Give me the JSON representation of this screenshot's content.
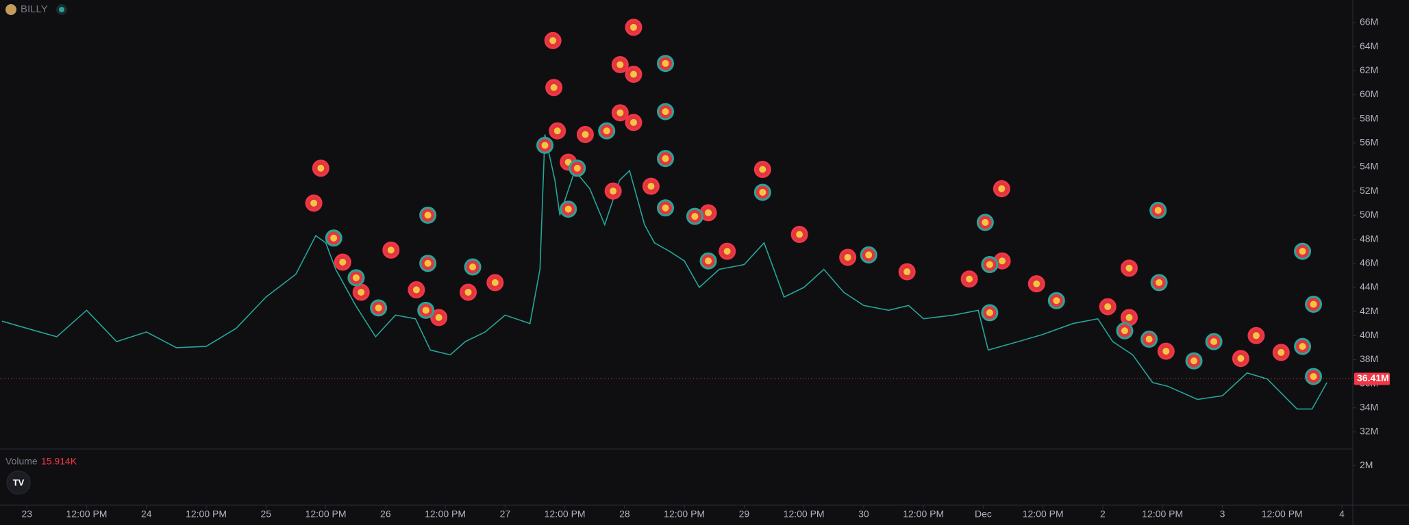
{
  "header": {
    "symbol": "BILLY"
  },
  "chart_data": {
    "type": "line",
    "x": [
      -5,
      0,
      6,
      12,
      18,
      24,
      30,
      36,
      42,
      48,
      54,
      58,
      60,
      62,
      66,
      70,
      74,
      78,
      81,
      85,
      88,
      92,
      96,
      101,
      103,
      104,
      106,
      107,
      110,
      113,
      116,
      119,
      121,
      124,
      126,
      129,
      132,
      135,
      139,
      144,
      148,
      152,
      156,
      160,
      164,
      168,
      173,
      177,
      180,
      186,
      191,
      193,
      199,
      204,
      210,
      215,
      218,
      222,
      226,
      229,
      235,
      240,
      245,
      249,
      255,
      258,
      261
    ],
    "values": [
      41.2,
      40.6,
      39.9,
      42.1,
      39.5,
      40.3,
      39.0,
      39.1,
      40.6,
      43.2,
      45.1,
      48.3,
      47.7,
      45.5,
      42.5,
      39.9,
      41.7,
      41.4,
      38.8,
      38.4,
      39.5,
      40.3,
      41.7,
      41.0,
      45.5,
      56.7,
      52.9,
      50.0,
      53.7,
      52.2,
      49.2,
      52.9,
      53.7,
      49.2,
      47.7,
      47.0,
      46.2,
      44.0,
      45.5,
      45.9,
      47.7,
      43.2,
      44.0,
      45.5,
      43.6,
      42.5,
      42.1,
      42.5,
      41.4,
      41.7,
      42.1,
      38.8,
      39.5,
      40.1,
      41.0,
      41.4,
      39.5,
      38.4,
      36.1,
      35.8,
      34.7,
      35.0,
      36.9,
      36.4,
      33.9,
      33.9,
      36.1
    ],
    "color": "#26a69a",
    "markers": [
      {
        "color": "#f23645",
        "x": [
          59.0,
          57.6,
          63.4,
          67.1,
          73.1,
          78.2,
          82.7,
          88.6,
          94.0,
          105.6,
          105.8,
          106.5,
          108.7,
          112.1,
          119.1,
          119.1,
          117.7,
          121.8,
          121.8,
          121.8,
          125.3,
          136.8,
          140.6,
          147.7,
          155.1,
          164.8,
          176.7,
          189.2,
          195.7,
          195.8,
          202.7,
          217.0,
          221.3,
          221.3,
          228.7,
          243.7,
          246.8,
          251.8
        ],
        "values": [
          53.9,
          51.0,
          46.1,
          43.6,
          47.1,
          43.8,
          41.5,
          43.6,
          44.4,
          64.5,
          60.6,
          57.0,
          54.4,
          56.7,
          62.5,
          58.5,
          52.0,
          65.6,
          61.7,
          57.7,
          52.4,
          50.2,
          47.0,
          53.8,
          48.4,
          46.5,
          45.3,
          44.7,
          52.2,
          46.2,
          44.3,
          42.4,
          45.6,
          41.5,
          38.7,
          38.1,
          40.0,
          38.6
        ]
      },
      {
        "color": "#26a69a",
        "x": [
          61.6,
          66.1,
          70.6,
          80.5,
          80.5,
          80.1,
          89.5,
          104.0,
          110.5,
          108.7,
          116.4,
          128.2,
          128.2,
          128.2,
          128.2,
          134.1,
          136.8,
          147.7,
          169.0,
          192.4,
          193.3,
          193.3,
          206.7,
          220.4,
          227.1,
          227.3,
          225.3,
          234.3,
          238.3,
          256.1,
          258.3,
          256.1,
          258.3
        ],
        "values": [
          48.1,
          44.8,
          42.3,
          50.0,
          46.0,
          42.1,
          45.7,
          55.8,
          53.9,
          50.5,
          57.0,
          62.6,
          58.6,
          54.7,
          50.6,
          49.9,
          46.2,
          51.9,
          46.7,
          49.4,
          45.9,
          41.9,
          42.9,
          40.4,
          50.4,
          44.4,
          39.7,
          37.9,
          39.5,
          47.0,
          42.6,
          39.1,
          36.6
        ]
      }
    ],
    "xlim": [
      -5.4,
      266.2
    ],
    "xticks": [
      {
        "value": 0,
        "label": "23"
      },
      {
        "value": 12,
        "label": "12:00 PM"
      },
      {
        "value": 24,
        "label": "24"
      },
      {
        "value": 36,
        "label": "12:00 PM"
      },
      {
        "value": 48,
        "label": "25"
      },
      {
        "value": 60,
        "label": "12:00 PM"
      },
      {
        "value": 72,
        "label": "26"
      },
      {
        "value": 84,
        "label": "12:00 PM"
      },
      {
        "value": 96,
        "label": "27"
      },
      {
        "value": 108,
        "label": "12:00 PM"
      },
      {
        "value": 120,
        "label": "28"
      },
      {
        "value": 132,
        "label": "12:00 PM"
      },
      {
        "value": 144,
        "label": "29"
      },
      {
        "value": 156,
        "label": "12:00 PM"
      },
      {
        "value": 168,
        "label": "30"
      },
      {
        "value": 180,
        "label": "12:00 PM"
      },
      {
        "value": 192,
        "label": "Dec"
      },
      {
        "value": 204,
        "label": "12:00 PM"
      },
      {
        "value": 216,
        "label": "2"
      },
      {
        "value": 228,
        "label": "12:00 PM"
      },
      {
        "value": 240,
        "label": "3"
      },
      {
        "value": 252,
        "label": "12:00 PM"
      },
      {
        "value": 264,
        "label": "4"
      }
    ],
    "ylim": [
      30.58,
      67.87
    ],
    "yticks": [
      {
        "value": 32,
        "label": "32M"
      },
      {
        "value": 34,
        "label": "34M"
      },
      {
        "value": 36,
        "label": "36M"
      },
      {
        "value": 38,
        "label": "38M"
      },
      {
        "value": 40,
        "label": "40M"
      },
      {
        "value": 42,
        "label": "42M"
      },
      {
        "value": 44,
        "label": "44M"
      },
      {
        "value": 46,
        "label": "46M"
      },
      {
        "value": 48,
        "label": "48M"
      },
      {
        "value": 50,
        "label": "50M"
      },
      {
        "value": 52,
        "label": "52M"
      },
      {
        "value": 54,
        "label": "54M"
      },
      {
        "value": 56,
        "label": "56M"
      },
      {
        "value": 58,
        "label": "58M"
      },
      {
        "value": 60,
        "label": "60M"
      },
      {
        "value": 62,
        "label": "62M"
      },
      {
        "value": 64,
        "label": "64M"
      },
      {
        "value": 66,
        "label": "66M"
      }
    ],
    "last_price": {
      "value": 36.41,
      "label": "36.41M",
      "color": "#f23645"
    },
    "volume": {
      "title": "Volume",
      "last": "15.914K",
      "ylim": [
        0,
        2.75
      ],
      "yticks": [
        {
          "value": 2,
          "label": "2M"
        }
      ]
    }
  }
}
